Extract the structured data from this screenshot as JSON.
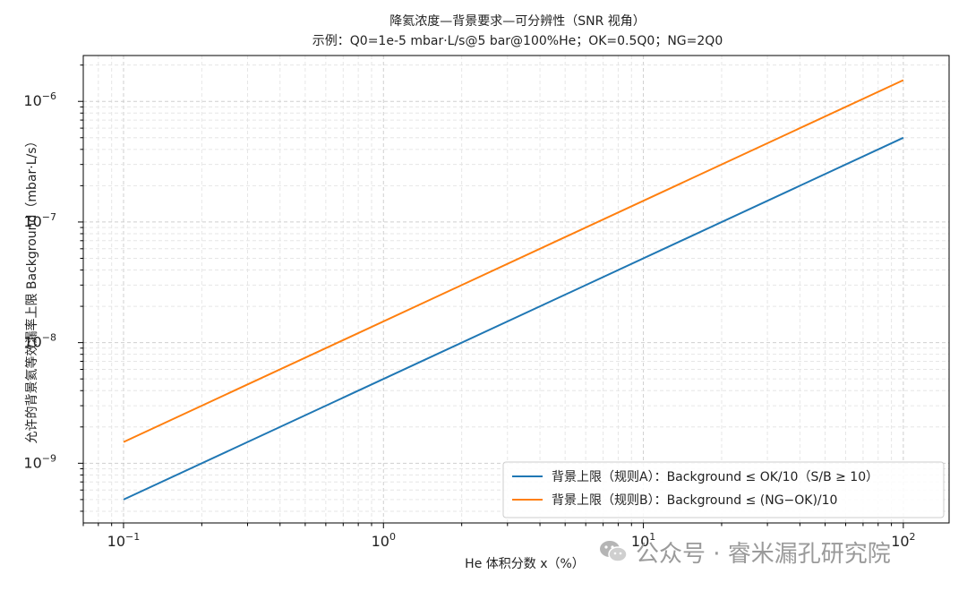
{
  "chart_data": {
    "type": "line",
    "title": "降氦浓度—背景要求—可分辨性（SNR 视角）",
    "subtitle": "示例：Q0=1e-5 mbar·L/s@5 bar@100%He；OK=0.5Q0；NG=2Q0",
    "xlabel": "He 体积分数 x（%）",
    "ylabel": "允许的背景氦等效漏率上限 Background（mbar·L/s）",
    "xscale": "log",
    "yscale": "log",
    "xlim": [
      0.07,
      150
    ],
    "ylim": [
      3.2e-10,
      2.4e-06
    ],
    "x_ticks": [
      {
        "value": 0.1,
        "base": "10",
        "exp": "−1"
      },
      {
        "value": 1,
        "base": "10",
        "exp": "0"
      },
      {
        "value": 10,
        "base": "10",
        "exp": "1"
      },
      {
        "value": 100,
        "base": "10",
        "exp": "2"
      }
    ],
    "y_ticks": [
      {
        "value": 1e-09,
        "base": "10",
        "exp": "−9"
      },
      {
        "value": 1e-08,
        "base": "10",
        "exp": "−8"
      },
      {
        "value": 1e-07,
        "base": "10",
        "exp": "−7"
      },
      {
        "value": 1e-06,
        "base": "10",
        "exp": "−6"
      }
    ],
    "grid": true,
    "legend_position": "bottom-right",
    "series": [
      {
        "name": "背景上限（规则A）：Background ≤ OK/10（S/B ≥ 10）",
        "color": "#1f77b4",
        "x": [
          0.1,
          100
        ],
        "y": [
          5e-10,
          5e-07
        ]
      },
      {
        "name": "背景上限（规则B）：Background ≤ (NG−OK)/10",
        "color": "#ff7f0e",
        "x": [
          0.1,
          100
        ],
        "y": [
          1.5e-09,
          1.5e-06
        ]
      }
    ]
  },
  "watermark": {
    "icon": "wechat-icon",
    "text": "公众号 · 睿米漏孔研究院"
  }
}
